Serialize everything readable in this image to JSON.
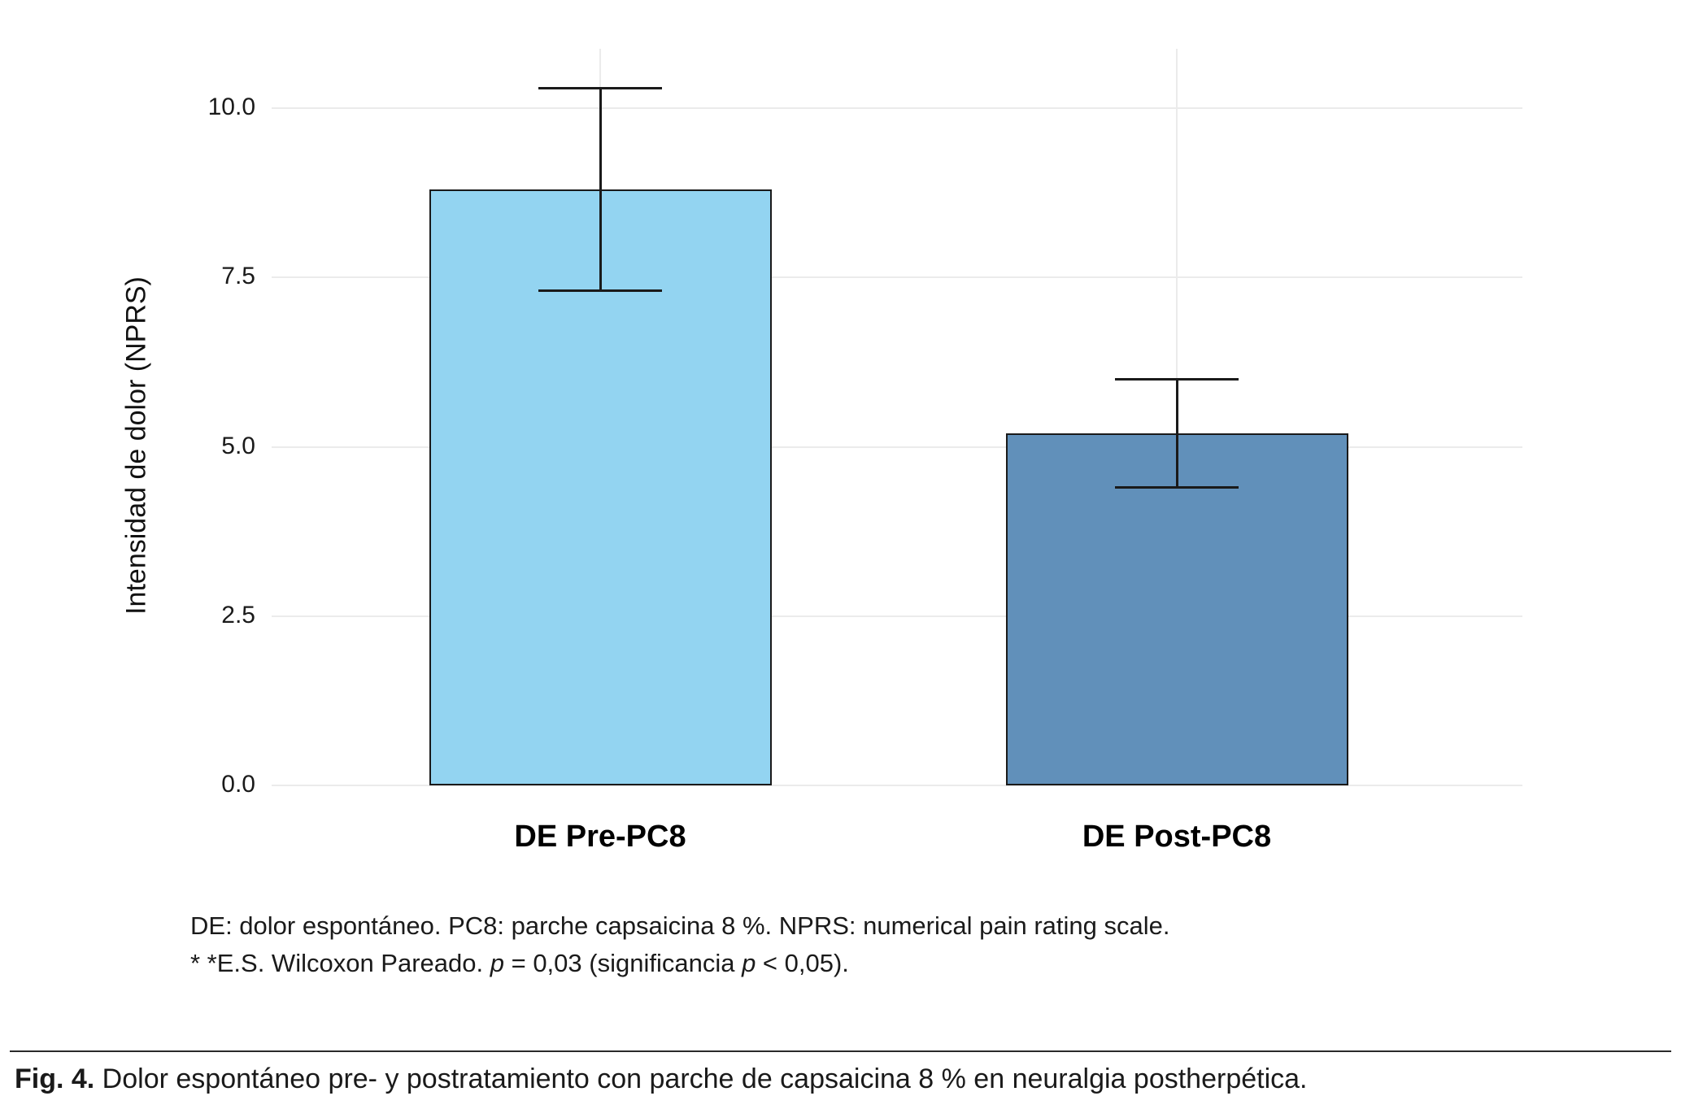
{
  "figure": {
    "caption_label": "Fig. 4.",
    "caption_text": " Dolor espontáneo pre- y postratamiento con parche de capsaicina 8 % en neuralgia postherpética."
  },
  "footnotes": {
    "line1": "DE: dolor espontáneo. PC8: parche capsaicina 8 %. NPRS: numerical pain rating scale.",
    "line2_parts": [
      {
        "text": "* *E.S. Wilcoxon Pareado. ",
        "italic": false
      },
      {
        "text": "p",
        "italic": true
      },
      {
        "text": " = 0,03 (significancia ",
        "italic": false
      },
      {
        "text": "p",
        "italic": true
      },
      {
        "text": " < 0,05).",
        "italic": false
      }
    ]
  },
  "chart_data": {
    "type": "bar",
    "categories": [
      "DE Pre-PC8",
      "DE Post-PC8"
    ],
    "values": [
      8.8,
      5.2
    ],
    "error_low": [
      7.3,
      4.4
    ],
    "error_high": [
      10.3,
      6.0
    ],
    "title": "",
    "xlabel": "",
    "ylabel": "Intensidad de dolor (NPRS)",
    "yticks": [
      0.0,
      2.5,
      5.0,
      7.5,
      10.0
    ],
    "ytick_labels": [
      "0.0",
      "2.5",
      "5.0",
      "7.5",
      "10.0"
    ],
    "ylim": [
      0,
      10.6
    ],
    "bar_colors": [
      "#93d4f1",
      "#6190ba"
    ],
    "grid": true,
    "legend": false
  }
}
